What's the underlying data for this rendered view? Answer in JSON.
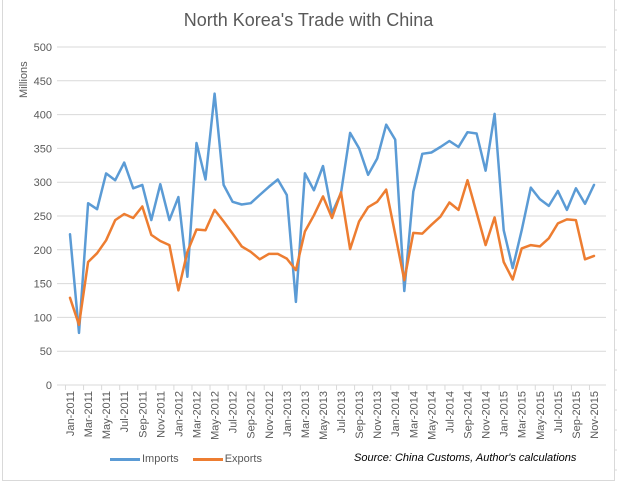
{
  "chart_data": {
    "type": "line",
    "title": "North Korea's Trade with China",
    "xlabel": "",
    "ylabel": "Millions",
    "ylim": [
      0,
      500
    ],
    "yticks": [
      0,
      50,
      100,
      150,
      200,
      250,
      300,
      350,
      400,
      450,
      500
    ],
    "grid": true,
    "legend_position": "bottom-left",
    "x_tick_labels": [
      "Jan-2011",
      "Mar-2011",
      "May-2011",
      "Jul-2011",
      "Sep-2011",
      "Nov-2011",
      "Jan-2012",
      "Mar-2012",
      "May-2012",
      "Jul-2012",
      "Sep-2012",
      "Nov-2012",
      "Jan-2013",
      "Mar-2013",
      "May-2013",
      "Jul-2013",
      "Sep-2013",
      "Nov-2013",
      "Jan-2014",
      "Mar-2014",
      "May-2014",
      "Jul-2014",
      "Sep-2014",
      "Nov-2014",
      "Jan-2015",
      "Mar-2015",
      "May-2015",
      "Jul-2015",
      "Sep-2015",
      "Nov-2015"
    ],
    "x": [
      "Jan-2011",
      "Feb-2011",
      "Mar-2011",
      "Apr-2011",
      "May-2011",
      "Jun-2011",
      "Jul-2011",
      "Aug-2011",
      "Sep-2011",
      "Oct-2011",
      "Nov-2011",
      "Dec-2011",
      "Jan-2012",
      "Feb-2012",
      "Mar-2012",
      "Apr-2012",
      "May-2012",
      "Jun-2012",
      "Jul-2012",
      "Aug-2012",
      "Sep-2012",
      "Oct-2012",
      "Nov-2012",
      "Dec-2012",
      "Jan-2013",
      "Feb-2013",
      "Mar-2013",
      "Apr-2013",
      "May-2013",
      "Jun-2013",
      "Jul-2013",
      "Aug-2013",
      "Sep-2013",
      "Oct-2013",
      "Nov-2013",
      "Dec-2013",
      "Jan-2014",
      "Feb-2014",
      "Mar-2014",
      "Apr-2014",
      "May-2014",
      "Jun-2014",
      "Jul-2014",
      "Aug-2014",
      "Sep-2014",
      "Oct-2014",
      "Nov-2014",
      "Dec-2014",
      "Jan-2015",
      "Feb-2015",
      "Mar-2015",
      "Apr-2015",
      "May-2015",
      "Jun-2015",
      "Jul-2015",
      "Aug-2015",
      "Sep-2015",
      "Oct-2015",
      "Nov-2015"
    ],
    "series": [
      {
        "name": "Imports",
        "color": "#5b9bd5",
        "values": [
          223,
          77,
          269,
          260,
          313,
          303,
          329,
          291,
          296,
          244,
          297,
          244,
          278,
          160,
          358,
          304,
          431,
          296,
          271,
          267,
          269,
          281,
          293,
          304,
          281,
          123,
          313,
          288,
          324,
          254,
          284,
          373,
          350,
          311,
          335,
          385,
          363,
          139,
          286,
          342,
          344,
          352,
          361,
          352,
          374,
          372,
          317,
          401,
          229,
          173,
          229,
          292,
          275,
          265,
          287,
          259,
          291,
          268,
          296
        ]
      },
      {
        "name": "Exports",
        "color": "#ed7d31",
        "values": [
          129,
          89,
          182,
          195,
          214,
          244,
          253,
          247,
          264,
          222,
          213,
          207,
          140,
          197,
          230,
          229,
          259,
          242,
          224,
          205,
          197,
          186,
          194,
          194,
          187,
          170,
          227,
          251,
          279,
          247,
          285,
          201,
          242,
          263,
          271,
          289,
          223,
          155,
          225,
          224,
          237,
          249,
          270,
          259,
          303,
          255,
          207,
          248,
          182,
          156,
          202,
          207,
          205,
          217,
          239,
          245,
          244,
          186,
          191
        ]
      }
    ],
    "annotations": [
      "Source: China Customs, Author's calculations"
    ]
  },
  "legend": {
    "imports_label": "Imports",
    "exports_label": "Exports"
  },
  "source_note": "Source: China Customs, Author's calculations"
}
